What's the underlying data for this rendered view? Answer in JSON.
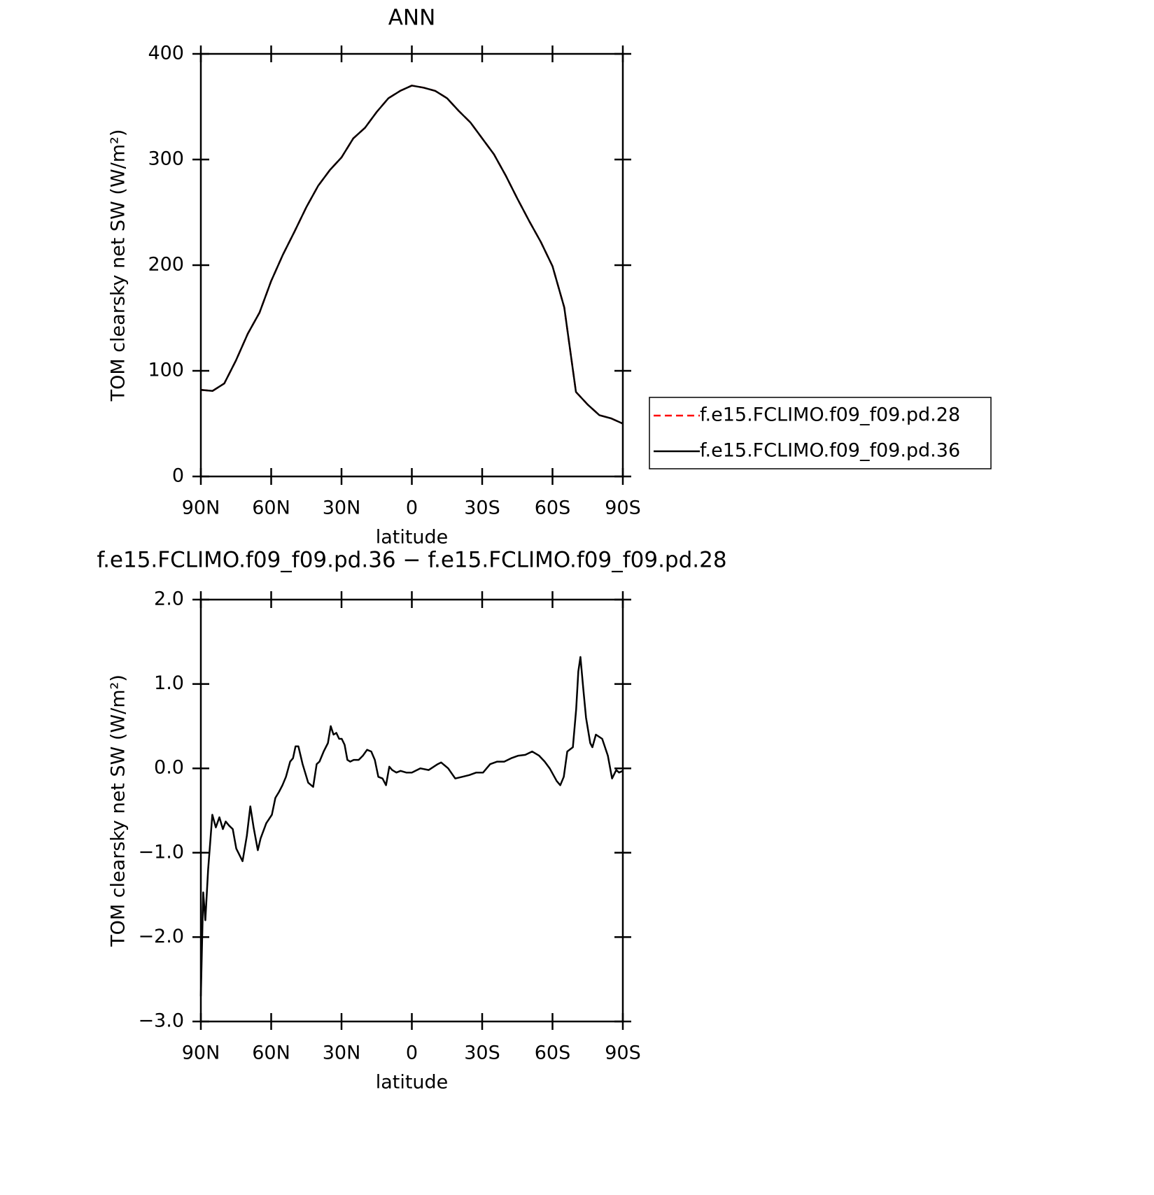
{
  "chart_data": [
    {
      "type": "line",
      "title": "ANN",
      "xlabel": "latitude",
      "ylabel": "TOM clearsky net SW (W/m²)",
      "xlim": [
        90,
        -90
      ],
      "xticks": [
        {
          "value": 90,
          "label": "90N"
        },
        {
          "value": 60,
          "label": "60N"
        },
        {
          "value": 30,
          "label": "30N"
        },
        0,
        {
          "value": -30,
          "label": "30S"
        },
        {
          "value": -60,
          "label": "60S"
        },
        {
          "value": -90,
          "label": "90S"
        }
      ],
      "ylim": [
        0,
        400
      ],
      "yticks": [
        0,
        100,
        200,
        300,
        400
      ],
      "x": [
        90,
        85,
        80,
        75,
        70,
        65,
        60,
        55,
        50,
        45,
        40,
        35,
        30,
        25,
        20,
        15,
        10,
        5,
        0,
        -5,
        -10,
        -15,
        -20,
        -25,
        -30,
        -35,
        -40,
        -45,
        -50,
        -55,
        -60,
        -65,
        -70,
        -75,
        -80,
        -85,
        -90
      ],
      "series": [
        {
          "name": "f.e15.FCLIMO.f09_f09.pd.28",
          "color": "#ff0000",
          "dash": true,
          "values": [
            82,
            81,
            88,
            110,
            135,
            155,
            185,
            210,
            232,
            255,
            275,
            290,
            302,
            320,
            330,
            345,
            358,
            365,
            370,
            368,
            365,
            358,
            346,
            335,
            320,
            305,
            285,
            263,
            242,
            222,
            199,
            160,
            80,
            68,
            58,
            55,
            50
          ]
        },
        {
          "name": "f.e15.FCLIMO.f09_f09.pd.36",
          "color": "#000000",
          "dash": false,
          "values": [
            82,
            81,
            88,
            110,
            135,
            155,
            185,
            210,
            232,
            255,
            275,
            290,
            302,
            320,
            330,
            345,
            358,
            365,
            370,
            368,
            365,
            358,
            346,
            335,
            320,
            305,
            285,
            263,
            242,
            222,
            199,
            160,
            80,
            68,
            58,
            55,
            50
          ]
        }
      ]
    },
    {
      "type": "line",
      "title": "f.e15.FCLIMO.f09_f09.pd.36 − f.e15.FCLIMO.f09_f09.pd.28",
      "xlabel": "latitude",
      "ylabel": "TOM clearsky net SW (W/m²)",
      "xlim": [
        90,
        -90
      ],
      "xticks": [
        {
          "value": 90,
          "label": "90N"
        },
        {
          "value": 60,
          "label": "60N"
        },
        {
          "value": 30,
          "label": "30N"
        },
        0,
        {
          "value": -30,
          "label": "30S"
        },
        {
          "value": -60,
          "label": "60S"
        },
        {
          "value": -90,
          "label": "90S"
        }
      ],
      "ylim": [
        -3,
        2
      ],
      "yticks": [
        {
          "value": -3,
          "label": "−3.0"
        },
        {
          "value": -2,
          "label": "−2.0"
        },
        {
          "value": -1,
          "label": "−1.0"
        },
        {
          "value": 0,
          "label": "0.0"
        },
        {
          "value": 1,
          "label": "1.0"
        },
        {
          "value": 2,
          "label": "2.0"
        }
      ],
      "x": [
        90,
        89.0,
        88.1,
        86.9,
        85.1,
        83.6,
        82.1,
        80.6,
        79.4,
        77.9,
        76.4,
        74.9,
        72.2,
        70.4,
        68.9,
        67.5,
        65.7,
        64.5,
        62.1,
        59.7,
        58.2,
        56.7,
        55.2,
        53.7,
        51.9,
        50.7,
        49.6,
        48.4,
        46.6,
        44.2,
        42.1,
        40.6,
        39.4,
        37.6,
        35.8,
        34.6,
        33.4,
        32.2,
        31.0,
        29.9,
        28.7,
        27.5,
        26.3,
        24.8,
        22.7,
        20.9,
        19.1,
        17.3,
        15.8,
        14.3,
        12.5,
        11.0,
        9.6,
        8.4,
        6.6,
        4.8,
        2.4,
        0,
        -3.6,
        -7.2,
        -11.0,
        -12.5,
        -15.5,
        -18.5,
        -21.5,
        -24.5,
        -27.5,
        -30.4,
        -33.4,
        -36.4,
        -39.4,
        -42.4,
        -45.4,
        -48.4,
        -51.3,
        -54.3,
        -56.7,
        -58.8,
        -61.8,
        -63.3,
        -64.8,
        -66.3,
        -68.7,
        -70.1,
        -71.0,
        -71.9,
        -73.1,
        -74.3,
        -76.1,
        -77.0,
        -78.5,
        -81.2,
        -83.6,
        -85.4,
        -87.2,
        -88.4,
        -90
      ],
      "series": [
        {
          "name": "",
          "color": "#000000",
          "dash": false,
          "values": [
            -2.7,
            -1.47,
            -1.8,
            -1.2,
            -0.55,
            -0.7,
            -0.58,
            -0.72,
            -0.63,
            -0.68,
            -0.72,
            -0.95,
            -1.1,
            -0.8,
            -0.45,
            -0.7,
            -0.97,
            -0.83,
            -0.65,
            -0.55,
            -0.35,
            -0.28,
            -0.2,
            -0.1,
            0.08,
            0.12,
            0.26,
            0.26,
            0.05,
            -0.17,
            -0.22,
            0.05,
            0.08,
            0.2,
            0.3,
            0.5,
            0.4,
            0.42,
            0.35,
            0.35,
            0.28,
            0.1,
            0.08,
            0.1,
            0.1,
            0.15,
            0.22,
            0.2,
            0.1,
            -0.1,
            -0.12,
            -0.2,
            0.02,
            -0.02,
            -0.05,
            -0.03,
            -0.05,
            -0.05,
            0.0,
            -0.02,
            0.05,
            0.07,
            0.0,
            -0.12,
            -0.1,
            -0.08,
            -0.05,
            -0.05,
            0.05,
            0.08,
            0.08,
            0.12,
            0.15,
            0.16,
            0.2,
            0.15,
            0.08,
            0.0,
            -0.15,
            -0.2,
            -0.1,
            0.2,
            0.25,
            0.7,
            1.15,
            1.32,
            0.95,
            0.6,
            0.3,
            0.25,
            0.4,
            0.35,
            0.15,
            -0.12,
            -0.02,
            -0.05,
            -0.03
          ]
        }
      ]
    }
  ]
}
